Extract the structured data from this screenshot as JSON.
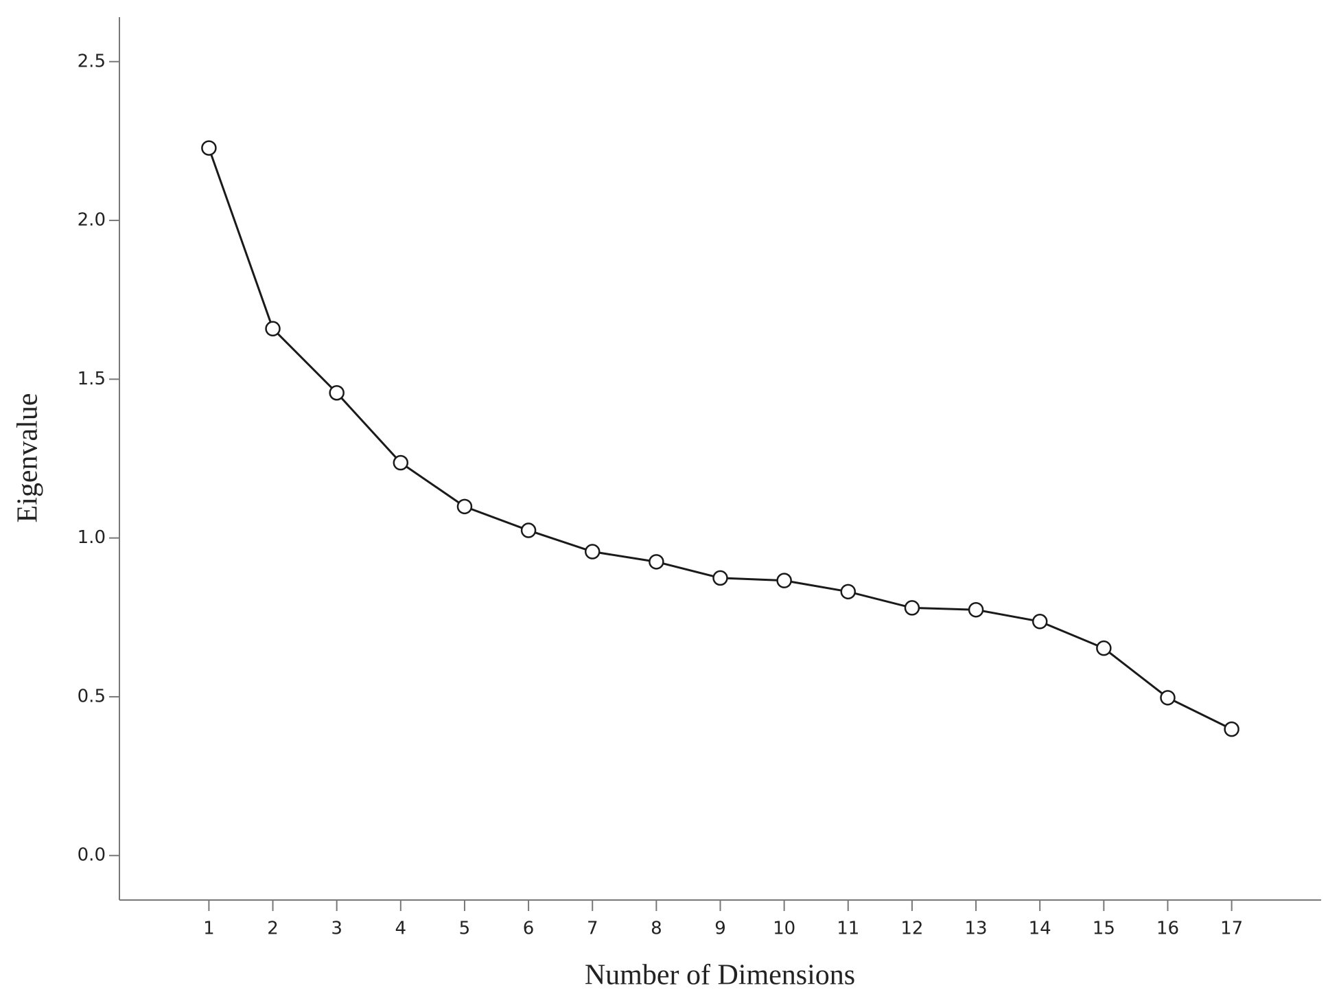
{
  "chart_data": {
    "type": "line",
    "x_label": "Number of Dimensions",
    "y_label": "Eigenvalue",
    "x": [
      1,
      2,
      3,
      4,
      5,
      6,
      7,
      8,
      9,
      10,
      11,
      12,
      13,
      14,
      15,
      16,
      17
    ],
    "series": [
      {
        "color": "#1a1a1a",
        "values": [
          2.228,
          1.659,
          1.457,
          1.237,
          1.099,
          1.024,
          0.957,
          0.925,
          0.874,
          0.866,
          0.831,
          0.78,
          0.774,
          0.737,
          0.653,
          0.497,
          0.398
        ]
      }
    ],
    "xlim": [
      -0.4,
      18.4
    ],
    "xticks": [
      1,
      2,
      3,
      4,
      5,
      6,
      7,
      8,
      9,
      10,
      11,
      12,
      13,
      14,
      15,
      16,
      17
    ],
    "ylim": [
      -0.14,
      2.64
    ],
    "yticks": [
      {
        "value": 0,
        "label": "0.0"
      },
      0.5,
      {
        "value": 1,
        "label": "1.0"
      },
      1.5,
      {
        "value": 2,
        "label": "2.0"
      },
      2.5
    ],
    "grid": false,
    "markers": "open-circle"
  }
}
